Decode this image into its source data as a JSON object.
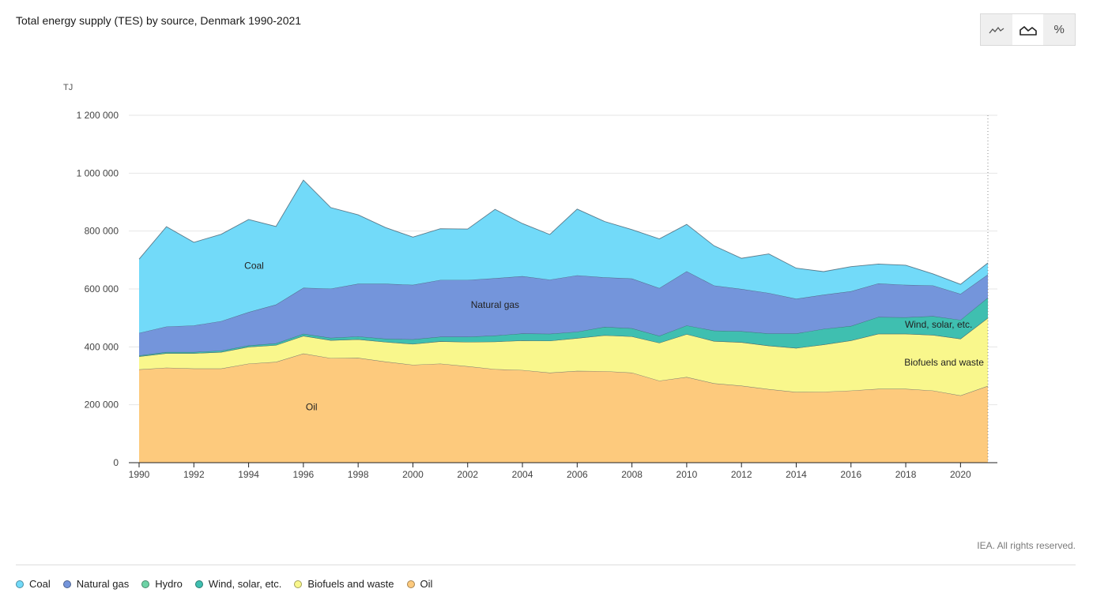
{
  "title": "Total energy supply (TES) by source, Denmark 1990-2021",
  "toggles": [
    {
      "name": "line-view",
      "icon": "line-chart-icon"
    },
    {
      "name": "area-view",
      "icon": "area-chart-icon",
      "active": true
    },
    {
      "name": "percent-view",
      "icon": "percent-icon",
      "label": "%"
    }
  ],
  "credit": "IEA. All rights reserved.",
  "chart_data": {
    "type": "area",
    "stacked": true,
    "title": "Total energy supply (TES) by source, Denmark 1990-2021",
    "ylabel": "TJ",
    "xlabel": "",
    "ylim": [
      0,
      1200000
    ],
    "yticks": [
      0,
      200000,
      400000,
      600000,
      800000,
      1000000,
      1200000
    ],
    "ytick_labels": [
      "0",
      "200 000",
      "400 000",
      "600 000",
      "800 000",
      "1 000 000",
      "1 200 000"
    ],
    "xticks": [
      1990,
      1992,
      1994,
      1996,
      1998,
      2000,
      2002,
      2004,
      2006,
      2008,
      2010,
      2012,
      2014,
      2016,
      2018,
      2020
    ],
    "x": [
      1990,
      1991,
      1992,
      1993,
      1994,
      1995,
      1996,
      1997,
      1998,
      1999,
      2000,
      2001,
      2002,
      2003,
      2004,
      2005,
      2006,
      2007,
      2008,
      2009,
      2010,
      2011,
      2012,
      2013,
      2014,
      2015,
      2016,
      2017,
      2018,
      2019,
      2020,
      2021
    ],
    "series": [
      {
        "name": "Oil",
        "color": "#fdca7d",
        "values": [
          322000,
          328000,
          325000,
          325000,
          342000,
          348000,
          377000,
          361000,
          362000,
          349000,
          338000,
          342000,
          333000,
          323000,
          320000,
          311000,
          317000,
          316000,
          311000,
          283000,
          296000,
          274000,
          266000,
          254000,
          244000,
          245000,
          249000,
          255000,
          255000,
          249000,
          232000,
          265000
        ]
      },
      {
        "name": "Biofuels and waste",
        "color": "#f9f78c",
        "values": [
          45000,
          50000,
          53000,
          57000,
          58000,
          58000,
          61000,
          62000,
          64000,
          68000,
          72000,
          77000,
          84000,
          95000,
          102000,
          110000,
          113000,
          124000,
          125000,
          131000,
          148000,
          146000,
          150000,
          150000,
          152000,
          163000,
          173000,
          190000,
          190000,
          192000,
          196000,
          235000
        ]
      },
      {
        "name": "Hydro",
        "color": "#6ed3a6",
        "values": [
          100,
          100,
          100,
          100,
          100,
          100,
          100,
          100,
          100,
          100,
          100,
          100,
          100,
          100,
          100,
          100,
          100,
          100,
          100,
          100,
          100,
          100,
          100,
          100,
          100,
          100,
          100,
          100,
          100,
          100,
          100,
          100
        ]
      },
      {
        "name": "Wind, solar, etc.",
        "color": "#3fbfb0",
        "values": [
          3000,
          4000,
          4000,
          5000,
          5000,
          6000,
          7000,
          8000,
          10000,
          11000,
          16000,
          16000,
          18000,
          21000,
          24000,
          24000,
          22000,
          29000,
          28000,
          24000,
          30000,
          36000,
          38000,
          42000,
          50000,
          54000,
          50000,
          58000,
          57000,
          65000,
          65000,
          70000
        ]
      },
      {
        "name": "Natural gas",
        "color": "#7495db",
        "values": [
          78000,
          88000,
          92000,
          102000,
          115000,
          134000,
          159000,
          170000,
          182000,
          190000,
          188000,
          196000,
          196000,
          198000,
          198000,
          187000,
          195000,
          171000,
          172000,
          165000,
          187000,
          156000,
          146000,
          140000,
          120000,
          118000,
          120000,
          116000,
          112000,
          106000,
          90000,
          80000
        ]
      },
      {
        "name": "Coal",
        "color": "#72daf9",
        "values": [
          255000,
          345000,
          287000,
          300000,
          320000,
          270000,
          372000,
          280000,
          238000,
          194000,
          165000,
          177000,
          176000,
          238000,
          182000,
          156000,
          229000,
          193000,
          169000,
          170000,
          162000,
          137000,
          106000,
          135000,
          106000,
          80000,
          85000,
          67000,
          68000,
          40000,
          33000,
          40000
        ]
      }
    ],
    "series_labels": [
      {
        "series": "Coal",
        "text": "Coal",
        "year": 1994.2,
        "value": 670000
      },
      {
        "series": "Natural gas",
        "text": "Natural gas",
        "year": 2003,
        "value": 535000
      },
      {
        "series": "Wind, solar, etc.",
        "text": "Wind, solar, etc.",
        "year": 2019.2,
        "value": 467000
      },
      {
        "series": "Biofuels and waste",
        "text": "Biofuels and waste",
        "year": 2019.4,
        "value": 335000
      },
      {
        "series": "Oil",
        "text": "Oil",
        "year": 1996.3,
        "value": 182000
      }
    ],
    "legend_order": [
      "Coal",
      "Natural gas",
      "Hydro",
      "Wind, solar, etc.",
      "Biofuels and waste",
      "Oil"
    ],
    "legend_position": "bottom-left"
  }
}
